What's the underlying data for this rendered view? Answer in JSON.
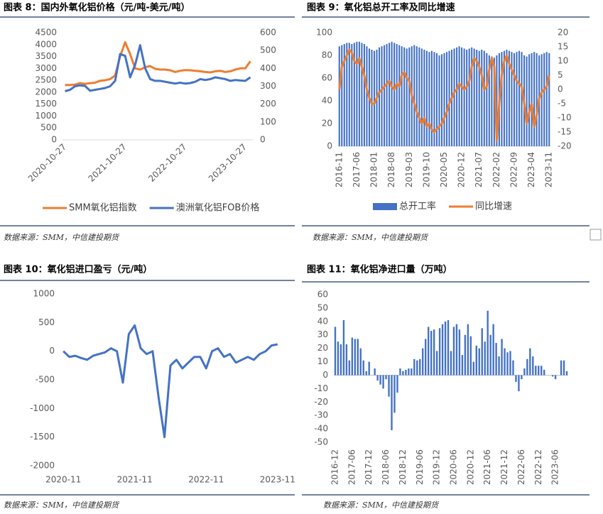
{
  "chart_data": [
    {
      "type": "line",
      "title": "图表 8：国内外氧化铝价格（元/吨-美元/吨）",
      "source": "数据来源：SMM，中信建投期货",
      "categories": [
        "2020-10-27",
        null,
        null,
        null,
        null,
        null,
        null,
        null,
        null,
        null,
        null,
        null,
        "2021-10-27",
        null,
        null,
        null,
        null,
        null,
        null,
        null,
        null,
        null,
        null,
        null,
        "2022-10-27",
        null,
        null,
        null,
        null,
        null,
        null,
        null,
        null,
        null,
        null,
        null,
        "2023-10-27",
        null
      ],
      "series": [
        {
          "name": "SMM氧化铝指数",
          "color": "#ed7d31",
          "values": [
            2300,
            2300,
            2320,
            2380,
            2350,
            2380,
            2400,
            2480,
            2500,
            2550,
            2700,
            3500,
            4100,
            3600,
            3000,
            2950,
            3050,
            3100,
            2980,
            2950,
            2950,
            2920,
            2850,
            2900,
            2930,
            2920,
            2900,
            2880,
            2850,
            2830,
            2880,
            2900,
            2850,
            2880,
            2950,
            3000,
            3000,
            3300
          ]
        },
        {
          "name": "澳洲氧化铝FOB价格",
          "color": "#4472c4",
          "axis": "y2",
          "values": [
            272,
            280,
            300,
            305,
            302,
            275,
            280,
            285,
            290,
            300,
            330,
            480,
            470,
            350,
            420,
            530,
            400,
            340,
            330,
            330,
            325,
            320,
            315,
            320,
            315,
            318,
            325,
            340,
            335,
            340,
            350,
            345,
            340,
            330,
            335,
            332,
            330,
            350
          ]
        }
      ],
      "ylim": [
        0,
        4500
      ],
      "yticks": [
        0,
        500,
        1000,
        1500,
        2000,
        2500,
        3000,
        3500,
        4000,
        4500
      ],
      "y2lim": [
        0,
        600
      ],
      "y2ticks": [
        0,
        100,
        200,
        300,
        400,
        500,
        600
      ],
      "grid": false,
      "legend": "bottom"
    },
    {
      "type": "combo",
      "title": "图表 9：氧化铝总开工率及同比增速",
      "source": "数据来源：SMM，中信建投期货",
      "categories": [
        "2016-11",
        null,
        null,
        null,
        null,
        null,
        null,
        "2017-06",
        null,
        null,
        null,
        null,
        null,
        null,
        "2018-01",
        null,
        null,
        null,
        null,
        null,
        null,
        "2018-08",
        null,
        null,
        null,
        null,
        null,
        null,
        "2019-03",
        null,
        null,
        null,
        null,
        null,
        null,
        "2019-10",
        null,
        null,
        null,
        null,
        null,
        null,
        "2020-05",
        null,
        null,
        null,
        null,
        null,
        null,
        "2020-12",
        null,
        null,
        null,
        null,
        null,
        null,
        "2021-07",
        null,
        null,
        null,
        null,
        null,
        null,
        "2022-02",
        null,
        null,
        null,
        null,
        null,
        null,
        "2022-09",
        null,
        null,
        null,
        null,
        null,
        null,
        "2023-04",
        null,
        null,
        null,
        null,
        null,
        null,
        "2023-11"
      ],
      "series": [
        {
          "name": "总开工率",
          "type": "bar",
          "color": "#4472c4",
          "values": [
            88,
            89,
            90,
            91,
            91,
            90,
            91,
            92,
            92,
            91,
            90,
            88,
            86,
            85,
            84,
            85,
            87,
            88,
            89,
            90,
            91,
            92,
            91,
            90,
            89,
            88,
            87,
            86,
            87,
            88,
            89,
            88,
            87,
            86,
            85,
            84,
            83,
            84,
            83,
            82,
            80,
            81,
            82,
            83,
            84,
            85,
            86,
            87,
            88,
            87,
            86,
            85,
            86,
            87,
            86,
            85,
            84,
            85,
            84,
            82,
            80,
            79,
            78,
            80,
            82,
            83,
            84,
            85,
            84,
            83,
            82,
            83,
            84,
            83,
            80,
            79,
            81,
            82,
            83,
            82,
            80,
            81,
            82,
            83,
            82
          ]
        },
        {
          "name": "同比增速",
          "type": "line",
          "color": "#ed7d31",
          "axis": "y2",
          "values": [
            0,
            8,
            10,
            12,
            14,
            13,
            10,
            9,
            11,
            8,
            5,
            0,
            -3,
            -5,
            -5,
            -3,
            -1,
            0,
            1,
            2,
            3,
            1,
            0,
            2,
            1,
            5,
            6,
            4,
            3,
            -2,
            -5,
            -8,
            -10,
            -12,
            -10,
            -13,
            -12,
            -14,
            -15,
            -14,
            -13,
            -12,
            -10,
            -8,
            -5,
            -3,
            -1,
            0,
            2,
            1,
            0,
            1,
            3,
            8,
            11,
            10,
            8,
            5,
            0,
            1,
            7,
            11,
            8,
            -18,
            -5,
            5,
            10,
            12,
            9,
            7,
            5,
            3,
            2,
            1,
            -5,
            -12,
            -8,
            -5,
            -13,
            -9,
            -3,
            -1,
            0,
            1,
            5
          ]
        }
      ],
      "ylim": [
        0,
        100
      ],
      "yticks": [
        0,
        20,
        40,
        60,
        80,
        100
      ],
      "y2lim": [
        -20,
        20
      ],
      "y2ticks": [
        -20,
        -15,
        -10,
        -5,
        0,
        5,
        10,
        15,
        20
      ],
      "grid": false,
      "legend": "bottom"
    },
    {
      "type": "line",
      "title": "图表 10：氧化铝进口盈亏（元/吨）",
      "source": "数据来源：SMM，中信建投期货",
      "categories": [
        "2020-11",
        null,
        null,
        null,
        null,
        null,
        null,
        null,
        null,
        null,
        null,
        null,
        "2021-11",
        null,
        null,
        null,
        null,
        null,
        null,
        null,
        null,
        null,
        null,
        null,
        "2022-11",
        null,
        null,
        null,
        null,
        null,
        null,
        null,
        null,
        null,
        null,
        null,
        "2023-11"
      ],
      "series": [
        {
          "color": "#4472c4",
          "values": [
            0,
            -100,
            -80,
            -120,
            -150,
            -80,
            -50,
            -20,
            50,
            0,
            -550,
            300,
            450,
            50,
            -50,
            0,
            -800,
            -1500,
            -250,
            -150,
            -300,
            -200,
            -100,
            -100,
            -300,
            0,
            50,
            -100,
            -50,
            -200,
            -150,
            -100,
            -150,
            -50,
            0,
            100,
            120
          ]
        }
      ],
      "ylim": [
        -2000,
        1000
      ],
      "yticks": [
        -2000,
        -1500,
        -1000,
        -500,
        0,
        500,
        1000
      ],
      "grid": false
    },
    {
      "type": "bar",
      "title": "图表 11：氧化铝净进口量（万吨）",
      "source": "数据来源：SMM，中信建投期货",
      "categories": [
        "2016-12",
        null,
        null,
        null,
        null,
        null,
        "2017-06",
        null,
        null,
        null,
        null,
        null,
        "2017-12",
        null,
        null,
        null,
        null,
        null,
        "2018-06",
        null,
        null,
        null,
        null,
        null,
        "2018-12",
        null,
        null,
        null,
        null,
        null,
        "2019-06",
        null,
        null,
        null,
        null,
        null,
        "2019-12",
        null,
        null,
        null,
        null,
        null,
        "2020-06",
        null,
        null,
        null,
        null,
        null,
        "2020-12",
        null,
        null,
        null,
        null,
        null,
        "2021-06",
        null,
        null,
        null,
        null,
        null,
        "2021-12",
        null,
        null,
        null,
        null,
        null,
        "2022-06",
        null,
        null,
        null,
        null,
        null,
        "2022-12",
        null,
        null,
        null,
        null,
        null,
        "2023-06",
        null,
        null,
        null,
        null
      ],
      "series": [
        {
          "color": "#4472c4",
          "values": [
            36,
            25,
            23,
            41,
            23,
            11,
            28,
            27,
            27,
            20,
            11,
            3,
            10,
            0,
            5,
            -4,
            -7,
            -10,
            -3,
            -16,
            -41,
            -28,
            -13,
            5,
            3,
            4,
            5,
            5,
            12,
            11,
            12,
            20,
            27,
            36,
            33,
            34,
            18,
            35,
            38,
            40,
            41,
            18,
            36,
            38,
            34,
            15,
            30,
            38,
            29,
            10,
            22,
            20,
            35,
            25,
            48,
            30,
            38,
            24,
            14,
            27,
            20,
            17,
            18,
            11,
            -5,
            -12,
            -3,
            5,
            12,
            20,
            14,
            7,
            7,
            7,
            4,
            0,
            0,
            -1,
            -3,
            0,
            11,
            11,
            3
          ]
        }
      ],
      "ylim": [
        -50,
        60
      ],
      "yticks": [
        -50,
        -40,
        -30,
        -20,
        -10,
        0,
        10,
        20,
        30,
        40,
        50,
        60
      ],
      "grid": false
    }
  ]
}
